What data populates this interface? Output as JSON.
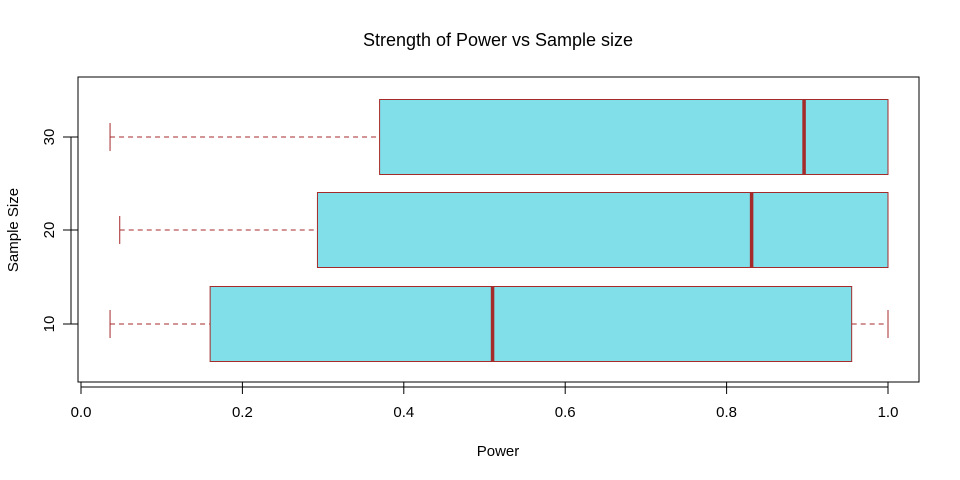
{
  "chart_data": {
    "type": "boxplot",
    "orientation": "horizontal",
    "title": "Strength of Power vs Sample size",
    "xlabel": "Power",
    "ylabel": "Sample Size",
    "xlim": [
      0.0,
      1.04
    ],
    "x_ticks": [
      0.0,
      0.2,
      0.4,
      0.6,
      0.8,
      1.0
    ],
    "x_tick_labels": [
      "0.0",
      "0.2",
      "0.4",
      "0.6",
      "0.8",
      "1.0"
    ],
    "categories": [
      "10",
      "20",
      "30"
    ],
    "series": [
      {
        "category": "10",
        "min": 0.036,
        "q1": 0.16,
        "median": 0.51,
        "q3": 0.955,
        "max": 1.0
      },
      {
        "category": "20",
        "min": 0.048,
        "q1": 0.293,
        "median": 0.831,
        "q3": 1.0,
        "max": 1.0
      },
      {
        "category": "30",
        "min": 0.036,
        "q1": 0.37,
        "median": 0.896,
        "q3": 1.0,
        "max": 1.0
      }
    ],
    "box_fill": "#80DFE9",
    "box_border": "#A52A2A",
    "median_color": "#A52A2A",
    "whisker_color": "#A52A2A",
    "grid": false
  }
}
